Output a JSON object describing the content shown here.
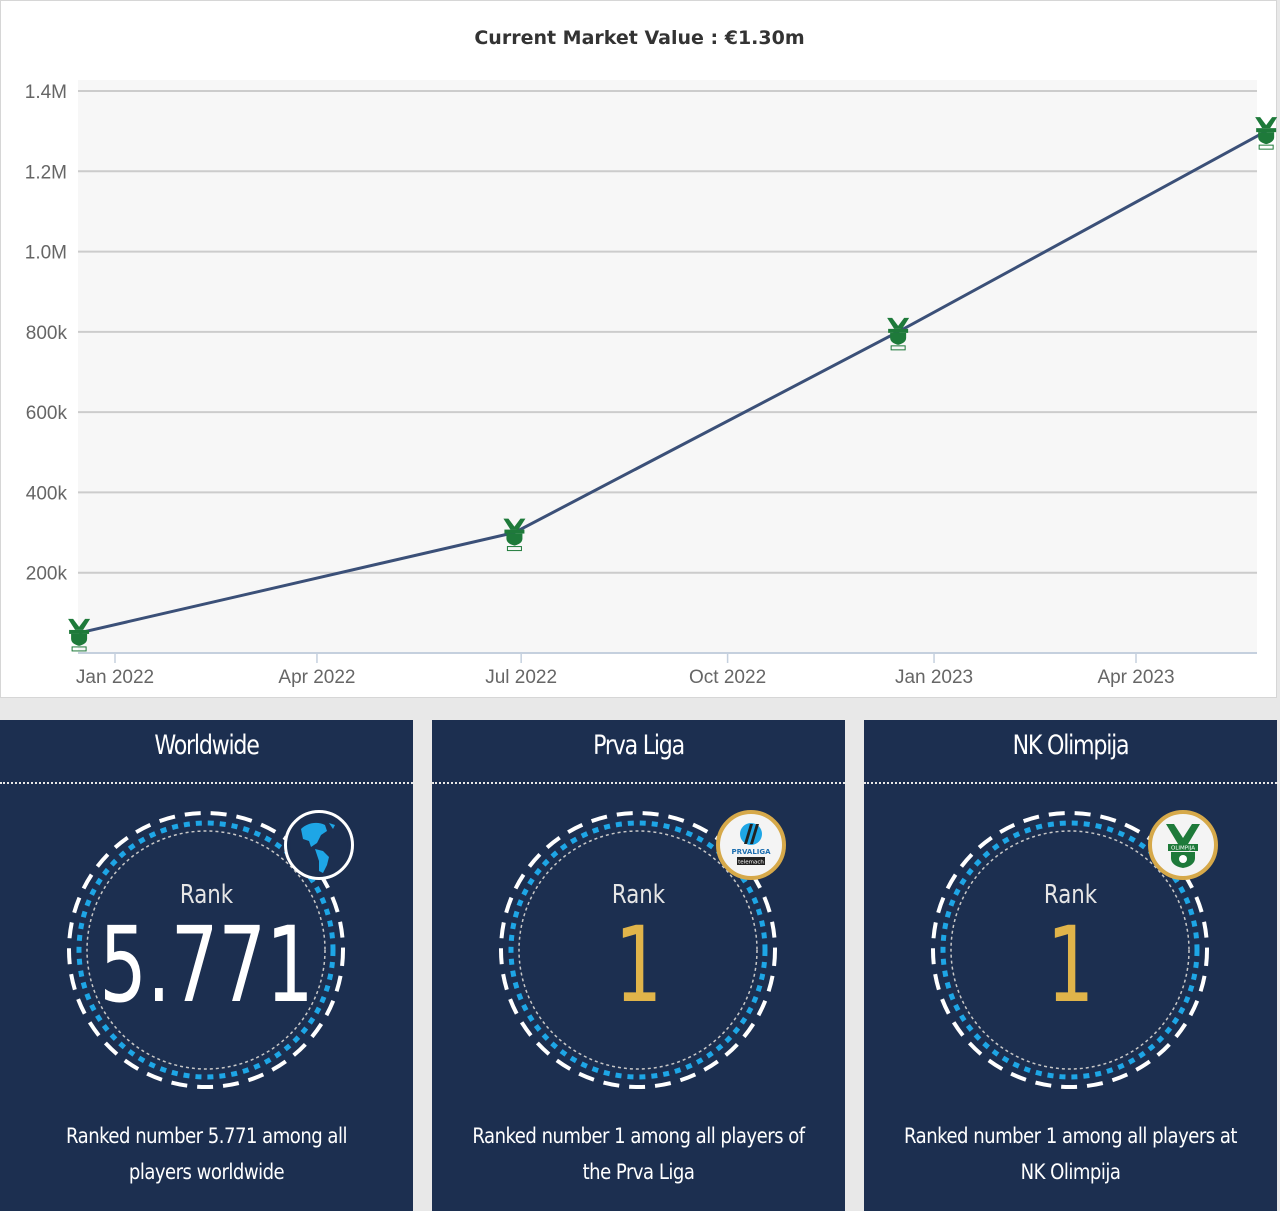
{
  "chart_data": {
    "type": "line",
    "title": "Current Market Value : €1.30m",
    "xlabel": "",
    "ylabel": "",
    "x_tick_labels": [
      "Jan 2022",
      "Apr 2022",
      "Jul 2022",
      "Oct 2022",
      "Jan 2023",
      "Apr 2023"
    ],
    "x_tick_dates": [
      "2022-01-01",
      "2022-04-01",
      "2022-07-01",
      "2022-10-01",
      "2023-01-01",
      "2023-04-01"
    ],
    "y_tick_labels": [
      "200k",
      "400k",
      "600k",
      "800k",
      "1.0M",
      "1.2M",
      "1.4M"
    ],
    "y_tick_values": [
      200000,
      400000,
      600000,
      800000,
      1000000,
      1200000,
      1400000
    ],
    "ylim": [
      0,
      1400000
    ],
    "xlim": [
      "2021-12-15",
      "2023-06-01"
    ],
    "grid": true,
    "legend": "none",
    "series": [
      {
        "name": "Market value",
        "color": "#3b5078",
        "marker": "club-crest-icon",
        "points": [
          {
            "date": "2021-12-16",
            "value": 50000
          },
          {
            "date": "2022-06-28",
            "value": 300000
          },
          {
            "date": "2022-12-16",
            "value": 800000
          },
          {
            "date": "2023-05-29",
            "value": 1300000
          }
        ]
      }
    ]
  },
  "rank_cards": [
    {
      "title": "Worldwide",
      "rank_label": "Rank",
      "rank_value": "5.771",
      "rank_color": "#ffffff",
      "badge": "globe-icon",
      "badge_border": "#ffffff",
      "description": "Ranked number 5.771 among all players worldwide"
    },
    {
      "title": "Prva Liga",
      "rank_label": "Rank",
      "rank_value": "1",
      "rank_color": "#e0b44a",
      "badge": "prva-liga-logo-icon",
      "badge_text_1": "PRVALIGA",
      "badge_text_2": "telemach",
      "badge_border": "#d6a94a",
      "description": "Ranked number 1 among all players of the Prva Liga"
    },
    {
      "title": "NK Olimpija",
      "rank_label": "Rank",
      "rank_value": "1",
      "rank_color": "#e0b44a",
      "badge": "olimpija-crest-icon",
      "badge_text_1": "OLIMPIJA",
      "badge_border": "#d6a94a",
      "description": "Ranked number 1 among all players at NK Olimpija"
    }
  ],
  "colors": {
    "card_bg": "#1c2f50",
    "ring_blue": "#1ea6e6",
    "gold": "#e0b44a",
    "line": "#3b5078",
    "plot_bg": "#f7f7f7",
    "crest_green": "#1e7a3a"
  }
}
